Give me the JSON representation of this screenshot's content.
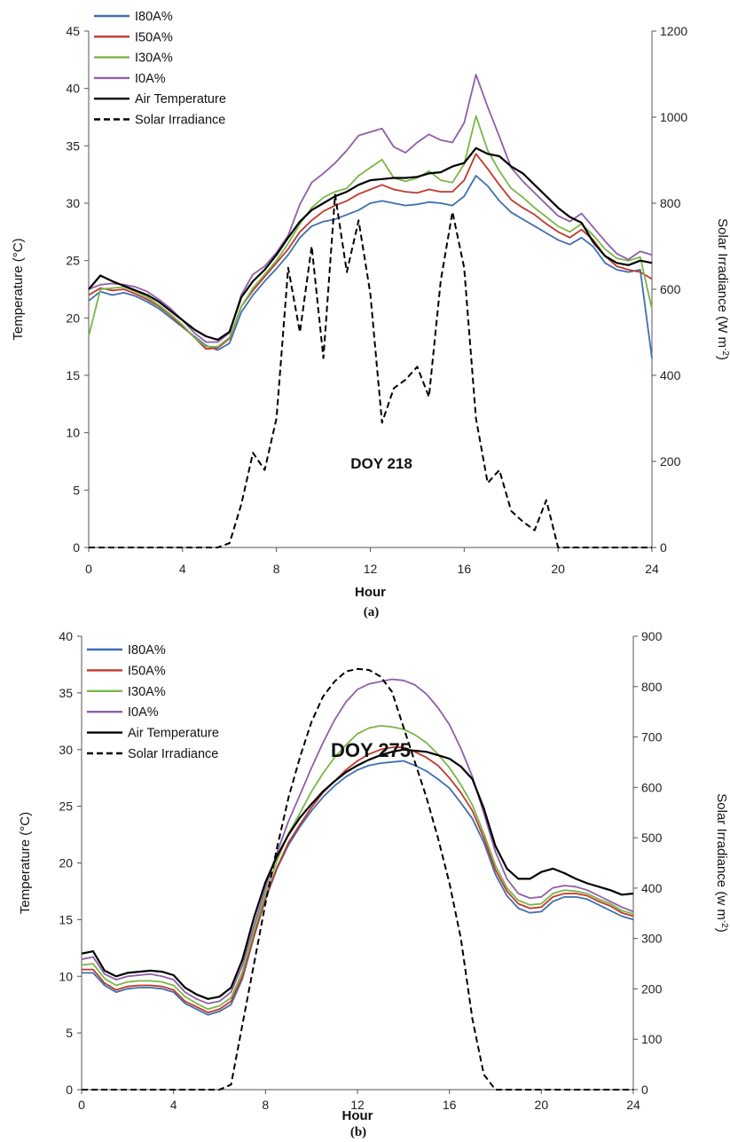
{
  "chart_data": [
    {
      "type": "line",
      "panel_caption": "(a)",
      "annotation": "DOY 218",
      "xlabel": "Hour",
      "ylabel": "Temperature (°C)",
      "y2label": "Solar Irradiance (W m-2)",
      "xlim": [
        0,
        24
      ],
      "ylim": [
        0,
        45
      ],
      "y2lim": [
        0,
        1200
      ],
      "xticks": [
        0,
        4,
        8,
        12,
        16,
        20,
        24
      ],
      "yticks": [
        0,
        5,
        10,
        15,
        20,
        25,
        30,
        35,
        40,
        45
      ],
      "y2ticks": [
        0,
        200,
        400,
        600,
        800,
        1000,
        1200
      ],
      "legend_position": "top-left",
      "x": [
        0,
        0.5,
        1,
        1.5,
        2,
        2.5,
        3,
        3.5,
        4,
        4.5,
        5,
        5.5,
        6,
        6.5,
        7,
        7.5,
        8,
        8.5,
        9,
        9.5,
        10,
        10.5,
        11,
        11.5,
        12,
        12.5,
        13,
        13.5,
        14,
        14.5,
        15,
        15.5,
        16,
        16.5,
        17,
        17.5,
        18,
        18.5,
        19,
        19.5,
        20,
        20.5,
        21,
        21.5,
        22,
        22.5,
        23,
        23.5,
        24
      ],
      "series": [
        {
          "name": "I80A%",
          "color": "#3e6fb0",
          "axis": "left",
          "values": [
            21.5,
            22.3,
            22,
            22.2,
            21.9,
            21.4,
            20.8,
            20,
            19.2,
            18.4,
            17.6,
            17.2,
            17.8,
            20.5,
            22,
            23.2,
            24.3,
            25.5,
            27,
            28,
            28.4,
            28.6,
            29,
            29.4,
            30,
            30.2,
            30,
            29.8,
            29.9,
            30.1,
            30,
            29.8,
            30.6,
            32.4,
            31.5,
            30.2,
            29.2,
            28.6,
            28,
            27.4,
            26.8,
            26.4,
            27,
            26.2,
            24.8,
            24.2,
            24,
            24.2,
            16.5
          ]
        },
        {
          "name": "I50A%",
          "color": "#c0392b",
          "axis": "left",
          "values": [
            22,
            22.6,
            22.4,
            22.5,
            22.1,
            21.6,
            21,
            20.2,
            19.3,
            18.3,
            17.3,
            17.4,
            18.2,
            21,
            22.4,
            23.6,
            24.8,
            26,
            27.5,
            28.5,
            29.3,
            29.8,
            30.2,
            30.8,
            31.2,
            31.6,
            31.2,
            31,
            30.9,
            31.2,
            31,
            31,
            32,
            34.3,
            33,
            31.6,
            30.3,
            29.6,
            29,
            28.2,
            27.5,
            27,
            27.7,
            26.8,
            25.4,
            24.5,
            24.2,
            24,
            23.4
          ]
        },
        {
          "name": "I30A%",
          "color": "#7ab648",
          "axis": "left",
          "values": [
            18.4,
            22.5,
            22.6,
            22.7,
            22.3,
            21.8,
            21.1,
            20.3,
            19.4,
            18.3,
            17.5,
            17.5,
            18.3,
            21,
            22.6,
            23.8,
            25,
            26.5,
            28.2,
            29.6,
            30.5,
            31,
            31.3,
            32.4,
            33.1,
            33.8,
            32.2,
            31.9,
            32.2,
            32.8,
            32,
            31.8,
            33.4,
            37.6,
            34.6,
            32.8,
            31.3,
            30.5,
            29.6,
            28.8,
            28,
            27.5,
            28.2,
            27.2,
            26,
            25.2,
            25,
            25.3,
            20.8
          ]
        },
        {
          "name": "I0A%",
          "color": "#8e5fa8",
          "axis": "left",
          "values": [
            22.5,
            22.9,
            23,
            22.9,
            22.7,
            22.3,
            21.6,
            20.8,
            19.8,
            18.7,
            17.9,
            17.9,
            18.7,
            22,
            23.8,
            24.5,
            25.7,
            27.2,
            29.9,
            31.8,
            32.6,
            33.5,
            34.6,
            35.9,
            36.2,
            36.5,
            34.9,
            34.4,
            35.3,
            36,
            35.5,
            35.3,
            37,
            41.2,
            38.4,
            35.8,
            33.1,
            31.9,
            30.9,
            29.9,
            28.9,
            28.4,
            29.1,
            27.9,
            26.7,
            25.6,
            25.1,
            25.8,
            25.5
          ]
        },
        {
          "name": "Air Temperature",
          "color": "#000000",
          "axis": "left",
          "values": [
            22.5,
            23.7,
            23.2,
            22.8,
            22.4,
            22,
            21.4,
            20.6,
            19.8,
            19,
            18.4,
            18.1,
            18.8,
            21.8,
            23.2,
            24.2,
            25.5,
            27,
            28.4,
            29.4,
            30,
            30.6,
            31,
            31.6,
            32,
            32.1,
            32.2,
            32.2,
            32.3,
            32.6,
            32.7,
            33.2,
            33.5,
            34.8,
            34.3,
            34.1,
            33.2,
            32.6,
            31.6,
            30.6,
            29.6,
            28.8,
            28.3,
            26.6,
            25.4,
            24.8,
            24.6,
            25,
            24.8
          ]
        },
        {
          "name": "Solar Irradiance",
          "color": "#000000",
          "axis": "right",
          "dashed": true,
          "values": [
            0,
            0,
            0,
            0,
            0,
            0,
            0,
            0,
            0,
            0,
            0,
            0,
            10,
            100,
            220,
            180,
            300,
            650,
            500,
            700,
            440,
            820,
            640,
            760,
            590,
            290,
            370,
            390,
            420,
            350,
            620,
            780,
            650,
            300,
            150,
            180,
            85,
            60,
            40,
            110,
            0,
            0,
            0,
            0,
            0,
            0,
            0,
            0,
            0
          ]
        }
      ]
    },
    {
      "type": "line",
      "panel_caption": "(b)",
      "annotation": "DOY 275",
      "xlabel": "Hour",
      "ylabel": "Temperature (°C)",
      "y2label": "Solar Irradiance (w m-2)",
      "xlim": [
        0,
        24
      ],
      "ylim": [
        0,
        40
      ],
      "y2lim": [
        0,
        900
      ],
      "xticks": [
        0,
        4,
        8,
        12,
        16,
        20,
        24
      ],
      "yticks": [
        0,
        5,
        10,
        15,
        20,
        25,
        30,
        35,
        40
      ],
      "y2ticks": [
        0,
        100,
        200,
        300,
        400,
        500,
        600,
        700,
        800,
        900
      ],
      "legend_position": "top-left",
      "x": [
        0,
        0.5,
        1,
        1.5,
        2,
        2.5,
        3,
        3.5,
        4,
        4.5,
        5,
        5.5,
        6,
        6.5,
        7,
        7.5,
        8,
        8.5,
        9,
        9.5,
        10,
        10.5,
        11,
        11.5,
        12,
        12.5,
        13,
        13.5,
        14,
        14.5,
        15,
        15.5,
        16,
        16.5,
        17,
        17.5,
        18,
        18.5,
        19,
        19.5,
        20,
        20.5,
        21,
        21.5,
        22,
        22.5,
        23,
        23.5,
        24
      ],
      "series": [
        {
          "name": "I80A%",
          "color": "#3e6fb0",
          "axis": "left",
          "values": [
            10.3,
            10.3,
            9.2,
            8.6,
            8.9,
            9,
            9,
            8.9,
            8.6,
            7.6,
            7.1,
            6.6,
            6.9,
            7.5,
            9.8,
            13.5,
            16.8,
            19.5,
            21.6,
            23.2,
            24.6,
            25.8,
            26.8,
            27.6,
            28.2,
            28.6,
            28.8,
            28.9,
            29,
            28.6,
            28.1,
            27.4,
            26.6,
            25.3,
            23.9,
            21.8,
            19,
            17.1,
            16,
            15.6,
            15.7,
            16.6,
            17,
            17,
            16.8,
            16.3,
            15.8,
            15.3,
            15
          ]
        },
        {
          "name": "I50A%",
          "color": "#c0392b",
          "axis": "left",
          "values": [
            10.6,
            10.6,
            9.4,
            8.8,
            9.1,
            9.2,
            9.2,
            9.1,
            8.8,
            7.8,
            7.3,
            6.8,
            7.1,
            7.8,
            10,
            13.6,
            16.9,
            19.6,
            21.8,
            23.4,
            24.9,
            26.2,
            27.2,
            28.2,
            29,
            29.6,
            30,
            30.2,
            30.2,
            29.8,
            29.3,
            28.6,
            27.5,
            26.2,
            24.6,
            22.2,
            19.4,
            17.5,
            16.4,
            16,
            16.1,
            17,
            17.3,
            17.3,
            17.1,
            16.6,
            16.2,
            15.6,
            15.3
          ]
        },
        {
          "name": "I30A%",
          "color": "#7ab648",
          "axis": "left",
          "values": [
            11,
            11.1,
            9.8,
            9.2,
            9.5,
            9.6,
            9.6,
            9.5,
            9.2,
            8.2,
            7.6,
            7.1,
            7.4,
            8.1,
            10.4,
            14,
            17.3,
            20.2,
            22.6,
            24.4,
            26.3,
            27.9,
            29.3,
            30.4,
            31.4,
            31.9,
            32.1,
            32,
            31.8,
            31.3,
            30.6,
            29.6,
            28.4,
            26.9,
            25.1,
            22.6,
            19.8,
            17.8,
            16.7,
            16.3,
            16.4,
            17.3,
            17.6,
            17.5,
            17.3,
            16.8,
            16.4,
            15.8,
            15.5
          ]
        },
        {
          "name": "I0A%",
          "color": "#8e5fa8",
          "axis": "left",
          "values": [
            11.5,
            11.7,
            10.2,
            9.7,
            10,
            10.1,
            10.2,
            10,
            9.7,
            8.6,
            8,
            7.6,
            7.8,
            8.6,
            11,
            14.5,
            17.8,
            20.9,
            23.7,
            26,
            28.4,
            30.6,
            32.6,
            34.2,
            35.3,
            35.8,
            36,
            36.2,
            36.1,
            35.7,
            34.9,
            33.7,
            32.2,
            30.1,
            27.6,
            24.4,
            21,
            18.6,
            17.3,
            16.9,
            17,
            17.8,
            18,
            17.9,
            17.6,
            17.1,
            16.6,
            16.1,
            15.7
          ]
        },
        {
          "name": "Air Temperature",
          "color": "#000000",
          "axis": "left",
          "values": [
            12,
            12.2,
            10.5,
            10,
            10.3,
            10.4,
            10.5,
            10.4,
            10.1,
            9,
            8.4,
            8,
            8.2,
            9,
            11.5,
            15.2,
            18.3,
            20.6,
            22.5,
            24,
            25.2,
            26.3,
            27.2,
            28,
            28.6,
            29.1,
            29.5,
            29.8,
            30,
            29.9,
            29.8,
            29.5,
            29.2,
            28.5,
            27.4,
            24.8,
            21.5,
            19.5,
            18.6,
            18.6,
            19.2,
            19.5,
            19.1,
            18.6,
            18.2,
            17.9,
            17.6,
            17.2,
            17.3
          ]
        },
        {
          "name": "Solar Irradiance",
          "color": "#000000",
          "axis": "right",
          "dashed": true,
          "values": [
            0,
            0,
            0,
            0,
            0,
            0,
            0,
            0,
            0,
            0,
            0,
            0,
            0,
            10,
            130,
            250,
            370,
            480,
            580,
            660,
            730,
            780,
            810,
            830,
            835,
            833,
            820,
            790,
            720,
            650,
            580,
            500,
            410,
            300,
            140,
            30,
            0,
            0,
            0,
            0,
            0,
            0,
            0,
            0,
            0,
            0,
            0,
            0,
            0
          ]
        }
      ]
    }
  ]
}
